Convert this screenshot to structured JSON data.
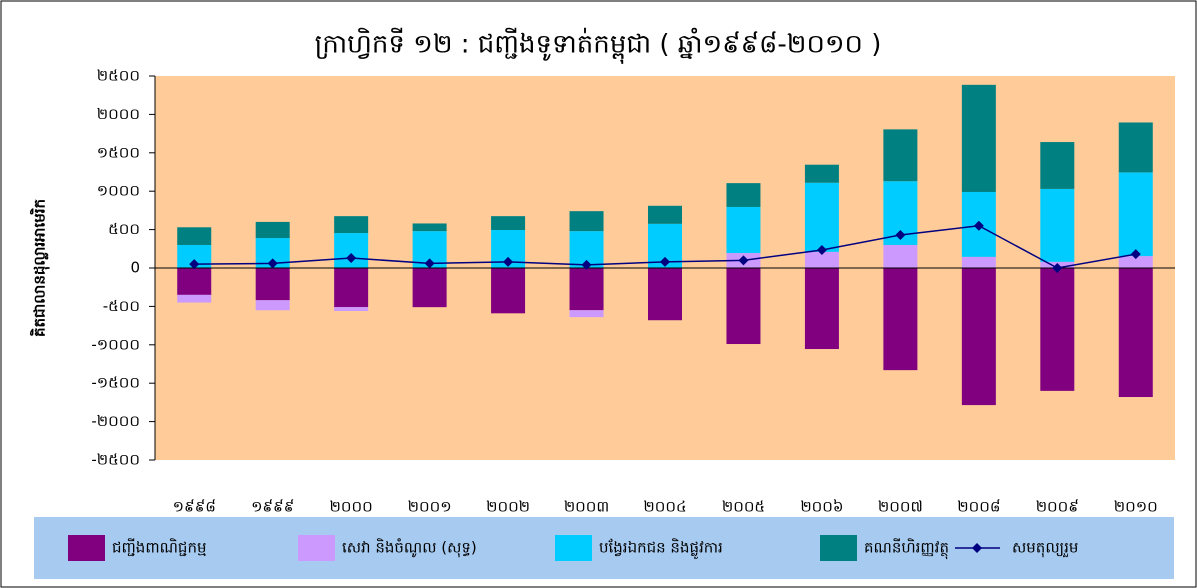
{
  "chart_data": {
    "type": "bar",
    "title": "ក្រាហ្វិកទី ១២ : ជញ្ជីងទូទាត់កម្ពុជា ( ឆ្នាំ១៩៩៨-២០១០ )",
    "y_label": "គិតជាលានដុល្លារអាមេរិក",
    "categories": [
      "១៩៩៨",
      "១៩៩៩",
      "២០០០",
      "២០០១",
      "២០០២",
      "២០០៣",
      "២០០៤",
      "២០០៥",
      "២០០៦",
      "២០០៧",
      "២០០៨",
      "២០០៩",
      "២០១០"
    ],
    "series": [
      {
        "name": "ជញ្ជីងពាណិជ្ជកម្ម",
        "color": "#800080",
        "values": [
          -350,
          -420,
          -510,
          -510,
          -590,
          -550,
          -680,
          -990,
          -1055,
          -1330,
          -1785,
          -1600,
          -1680
        ]
      },
      {
        "name": "សេវា និងចំណូល (សុទ្ធ)",
        "color": "#cc99ff",
        "values": [
          -100,
          -130,
          -50,
          0,
          0,
          -90,
          0,
          195,
          210,
          300,
          145,
          80,
          155
        ]
      },
      {
        "name": "បង្វែរឯកជន និងផ្លូវការ",
        "color": "#00ccff",
        "values": [
          300,
          390,
          455,
          480,
          495,
          480,
          575,
          600,
          900,
          830,
          845,
          950,
          1090
        ]
      },
      {
        "name": "គណនីហិរញ្ញវត្ថុ",
        "color": "#008080",
        "values": [
          230,
          210,
          220,
          100,
          180,
          260,
          235,
          310,
          235,
          675,
          1395,
          610,
          650
        ]
      },
      {
        "name": "សមតុល្យរួម",
        "color": "#000080",
        "type": "line",
        "values": [
          50,
          60,
          130,
          60,
          80,
          40,
          80,
          100,
          235,
          430,
          550,
          0,
          180
        ]
      }
    ],
    "ylim": [
      -2500,
      2500
    ],
    "yticks": [
      {
        "value": -2500,
        "label": "-២៥០០"
      },
      {
        "value": -2000,
        "label": "-២០០០"
      },
      {
        "value": -1500,
        "label": "-១៥០០"
      },
      {
        "value": -1000,
        "label": "-១០០០"
      },
      {
        "value": -500,
        "label": "-៥០០"
      },
      0,
      {
        "value": 500,
        "label": "៥០០"
      },
      {
        "value": 1000,
        "label": "១០០០"
      },
      {
        "value": 1500,
        "label": "១៥០០"
      },
      {
        "value": 2000,
        "label": "២០០០"
      },
      {
        "value": 2500,
        "label": "២៥០០"
      }
    ]
  }
}
